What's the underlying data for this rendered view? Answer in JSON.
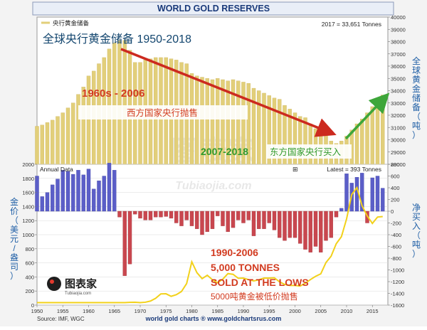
{
  "header": {
    "title": "WORLD GOLD RESERVES"
  },
  "footer": {
    "source": "Source: IMF, WGC",
    "credit": "world gold charts ® www.goldchartsrus.com"
  },
  "watermark": {
    "text": "Tubiaojia.com",
    "logo_text": "图表家",
    "logo_sub": "Tubiaojia.com"
  },
  "colors": {
    "page_bg": "#ffffff",
    "frame_bg": "#f3f3f3",
    "plot_bg": "#ffffff",
    "reserves_bar": "#e2cf7a",
    "reserves_bar_stroke": "#c8ad4f",
    "buy_bar": "#5b5ec8",
    "sell_bar": "#c9474f",
    "price_line": "#f2d11a",
    "down_arrow": "#cc2a1f",
    "up_arrow": "#3ea63a",
    "axis_text": "#333333",
    "grid": "#d8d8d8",
    "title_text": "#1a3a7a",
    "annot_red": "#d23b20",
    "annot_green": "#2f9a2c",
    "side_label": "#1f5fa6"
  },
  "chart_data": [
    {
      "type": "bar",
      "panel": "top",
      "title": "全球央行黄金储备 1950-2018",
      "legend": {
        "label": "央行黄金储备",
        "position": "top-left"
      },
      "annotation_right": "2017 = 33,651 Tonnes",
      "ylabel_right": "全球黄金储备（吨）",
      "ylim": [
        28000,
        40000
      ],
      "yticks": [
        28000,
        29000,
        30000,
        31000,
        32000,
        33000,
        34000,
        35000,
        36000,
        37000,
        38000,
        39000,
        40000
      ],
      "grid": false,
      "x": [
        1950,
        1951,
        1952,
        1953,
        1954,
        1955,
        1956,
        1957,
        1958,
        1959,
        1960,
        1961,
        1962,
        1963,
        1964,
        1965,
        1966,
        1967,
        1968,
        1969,
        1970,
        1971,
        1972,
        1973,
        1974,
        1975,
        1976,
        1977,
        1978,
        1979,
        1980,
        1981,
        1982,
        1983,
        1984,
        1985,
        1986,
        1987,
        1988,
        1989,
        1990,
        1991,
        1992,
        1993,
        1994,
        1995,
        1996,
        1997,
        1998,
        1999,
        2000,
        2001,
        2002,
        2003,
        2004,
        2005,
        2006,
        2007,
        2008,
        2009,
        2010,
        2011,
        2012,
        2013,
        2014,
        2015,
        2016,
        2017
      ],
      "values": [
        31100,
        31200,
        31400,
        31600,
        31900,
        32200,
        32600,
        33000,
        33700,
        34300,
        35200,
        35600,
        36200,
        36700,
        37400,
        37900,
        38100,
        38100,
        37300,
        36300,
        36300,
        36500,
        36600,
        36700,
        36700,
        36700,
        36600,
        36500,
        36300,
        36200,
        35400,
        35200,
        35100,
        35000,
        34900,
        35000,
        34900,
        34800,
        34900,
        34800,
        34700,
        34600,
        34200,
        34000,
        33800,
        33600,
        33400,
        33300,
        32800,
        32500,
        32200,
        31900,
        31800,
        31300,
        30900,
        30600,
        30300,
        29900,
        29700,
        29900,
        30300,
        30800,
        31300,
        31700,
        32200,
        32700,
        33100,
        33651
      ],
      "annotations": [
        {
          "text": "1960s - 2006",
          "color": "red"
        },
        {
          "text": "西方国家央行抛售",
          "color": "red"
        },
        {
          "text": "2007-2018",
          "color": "green"
        },
        {
          "text": "东方国家央行买入",
          "color": "green"
        }
      ]
    },
    {
      "type": "bar",
      "panel": "bottom",
      "label": "Annual Data",
      "legend_marker": "⊞",
      "annotation_right": "Latest = 393 Tonnes",
      "ylabel_right": "净买入（吨）",
      "ylim": [
        -1600,
        800
      ],
      "yticks": [
        -1600,
        -1400,
        -1200,
        -1000,
        -800,
        -600,
        -400,
        -200,
        0,
        200,
        400,
        600,
        800
      ],
      "x": [
        1950,
        1951,
        1952,
        1953,
        1954,
        1955,
        1956,
        1957,
        1958,
        1959,
        1960,
        1961,
        1962,
        1963,
        1964,
        1965,
        1966,
        1967,
        1968,
        1969,
        1970,
        1971,
        1972,
        1973,
        1974,
        1975,
        1976,
        1977,
        1978,
        1979,
        1980,
        1981,
        1982,
        1983,
        1984,
        1985,
        1986,
        1987,
        1988,
        1989,
        1990,
        1991,
        1992,
        1993,
        1994,
        1995,
        1996,
        1997,
        1998,
        1999,
        2000,
        2001,
        2002,
        2003,
        2004,
        2005,
        2006,
        2007,
        2008,
        2009,
        2010,
        2011,
        2012,
        2013,
        2014,
        2015,
        2016,
        2017
      ],
      "values": [
        600,
        250,
        320,
        450,
        550,
        700,
        680,
        630,
        700,
        620,
        720,
        380,
        520,
        600,
        820,
        700,
        -100,
        -1100,
        -900,
        -50,
        -120,
        -150,
        -150,
        -100,
        -100,
        -90,
        -120,
        -200,
        -250,
        -150,
        -250,
        -300,
        -400,
        -350,
        -300,
        -80,
        -250,
        -350,
        -280,
        -150,
        -200,
        -150,
        -420,
        -300,
        -300,
        -200,
        -320,
        -450,
        -500,
        -450,
        -450,
        -550,
        -650,
        -700,
        -600,
        -700,
        -500,
        -450,
        -100,
        50,
        640,
        480,
        580,
        650,
        -200,
        570,
        600,
        393
      ],
      "annotations": [
        {
          "text": "1990-2006",
          "color": "red"
        },
        {
          "text": "5,000 TONNES",
          "color": "red"
        },
        {
          "text": "SOLD AT THE LOWS",
          "color": "red"
        },
        {
          "text": "5000吨黄金被低价抛售",
          "color": "red"
        }
      ]
    },
    {
      "type": "line",
      "panel": "bottom",
      "series": [
        {
          "values": [
            35,
            35,
            35,
            35,
            35,
            35,
            35,
            35,
            35,
            35,
            35,
            35,
            35,
            35,
            35,
            35,
            35,
            35,
            39,
            41,
            36,
            41,
            58,
            97,
            159,
            161,
            125,
            148,
            193,
            306,
            615,
            460,
            376,
            424,
            360,
            317,
            368,
            447,
            437,
            381,
            384,
            362,
            344,
            360,
            384,
            384,
            388,
            331,
            294,
            279,
            279,
            271,
            310,
            363,
            409,
            444,
            604,
            695,
            872,
            972,
            1225,
            1571,
            1669,
            1411,
            1266,
            1160,
            1251,
            1257
          ]
        }
      ],
      "ylabel_left": "金价（美元/盎司）",
      "ylim": [
        0,
        2000
      ],
      "yticks": [
        0,
        200,
        400,
        600,
        800,
        1000,
        1200,
        1400,
        1600,
        1800,
        2000
      ],
      "xlim": [
        1950,
        2018
      ],
      "xticks": [
        1950,
        1955,
        1960,
        1965,
        1970,
        1975,
        1980,
        1985,
        1990,
        1995,
        2000,
        2005,
        2010,
        2015
      ]
    }
  ]
}
